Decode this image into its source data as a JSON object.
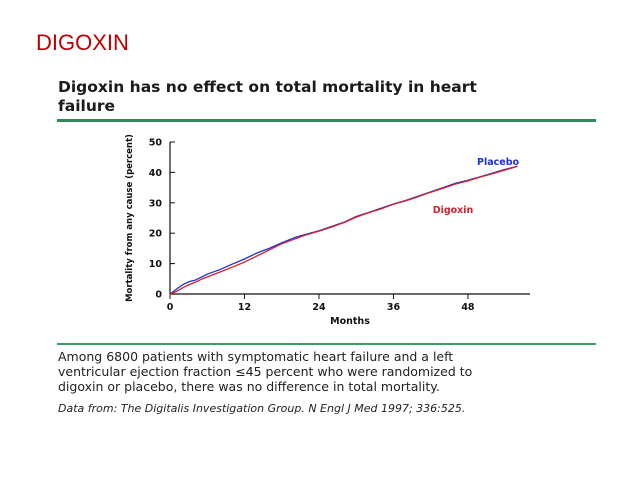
{
  "slide": {
    "title": "DIGOXIN"
  },
  "figure": {
    "title_lines": [
      "Digoxin has no effect on total mortality in heart",
      "failure"
    ],
    "caption_lines": [
      "Among 6800 patients with symptomatic heart failure and a left",
      "ventricular ejection fraction ≤45 percent who were randomized to",
      "digoxin or placebo, there was no difference in total mortality."
    ],
    "source": "Data from: The Digitalis Investigation Group. N Engl J Med 1997; 336:525."
  },
  "chart_data": {
    "type": "line",
    "xlabel": "Months",
    "ylabel": "Mortality from any cause (percent)",
    "xlim": [
      0,
      58
    ],
    "ylim": [
      0,
      50
    ],
    "x_ticks": [
      0,
      12,
      24,
      36,
      48
    ],
    "y_ticks": [
      0,
      10,
      20,
      30,
      40,
      50
    ],
    "grid": false,
    "series": [
      {
        "name": "Placebo",
        "color": "#1f2fd0",
        "x": [
          0,
          1,
          2,
          3,
          4,
          5,
          6,
          8,
          10,
          12,
          14,
          16,
          18,
          20,
          22,
          24,
          26,
          28,
          30,
          32,
          34,
          36,
          38,
          40,
          42,
          44,
          46,
          48,
          50,
          52,
          54,
          56
        ],
        "y": [
          0,
          1.5,
          3,
          4,
          4.5,
          5.5,
          6.5,
          8,
          9.8,
          11.5,
          13.5,
          15,
          16.8,
          18.5,
          19.7,
          20.8,
          22.2,
          23.6,
          25.5,
          26.8,
          28.2,
          29.6,
          30.8,
          32.2,
          33.6,
          35.0,
          36.4,
          37.4,
          38.6,
          39.8,
          41.0,
          42.0
        ]
      },
      {
        "name": "Digoxin",
        "color": "#d81f2a",
        "x": [
          0,
          1,
          2,
          3,
          4,
          5,
          6,
          8,
          10,
          12,
          14,
          16,
          18,
          20,
          22,
          24,
          26,
          28,
          30,
          32,
          34,
          36,
          38,
          40,
          42,
          44,
          46,
          48,
          50,
          52,
          54,
          56
        ],
        "y": [
          0,
          0.8,
          2,
          3,
          3.8,
          4.8,
          5.6,
          7.2,
          8.8,
          10.5,
          12.5,
          14.5,
          16.5,
          18.0,
          19.5,
          20.7,
          22.0,
          23.5,
          25.3,
          26.7,
          28.0,
          29.5,
          30.7,
          32.0,
          33.5,
          34.8,
          36.2,
          37.2,
          38.5,
          39.6,
          40.8,
          42.0
        ]
      }
    ]
  }
}
